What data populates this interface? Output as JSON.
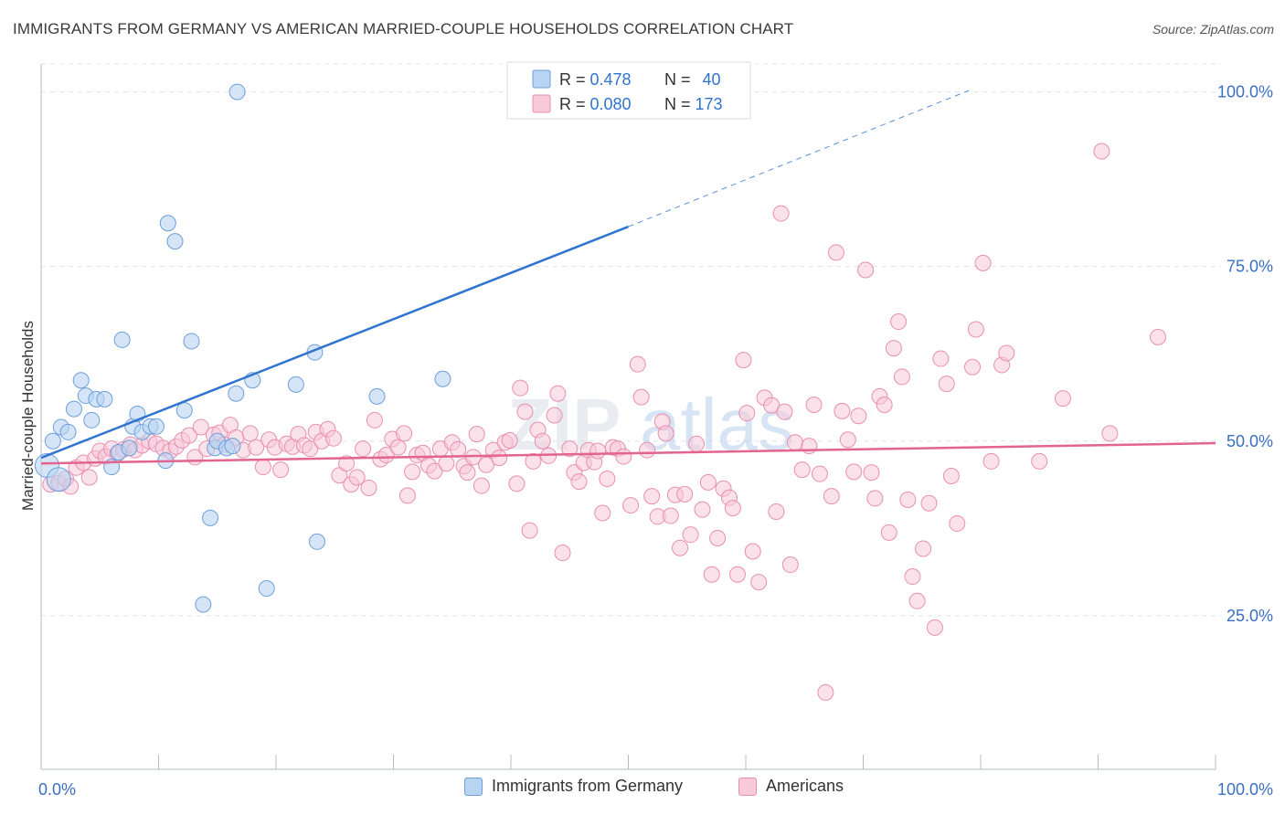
{
  "title": "IMMIGRANTS FROM GERMANY VS AMERICAN MARRIED-COUPLE HOUSEHOLDS CORRELATION CHART",
  "source": "Source: ZipAtlas.com",
  "watermark": {
    "zip": "ZIP",
    "atlas": "atlas"
  },
  "colors": {
    "blue_fill": "#b9d3f2",
    "blue_stroke": "#6d9fdb",
    "blue_line": "#2f74d0",
    "pink_fill": "#f8c9d8",
    "pink_stroke": "#e98fae",
    "pink_line": "#e2648f",
    "grid": "#dfe3ea",
    "axis_text": "#3b6fc2"
  },
  "legend_top": {
    "rows": [
      {
        "r_label": "R = ",
        "r_value": "0.478",
        "n_label": "N = ",
        "n_value": "40",
        "series": "blue"
      },
      {
        "r_label": "R = ",
        "r_value": "0.080",
        "n_label": "N = ",
        "n_value": "173",
        "series": "pink"
      }
    ]
  },
  "legend_bottom": {
    "items": [
      {
        "label": "Immigrants from Germany",
        "series": "blue"
      },
      {
        "label": "Americans",
        "series": "pink"
      }
    ]
  },
  "chart_data": {
    "type": "scatter",
    "title": "IMMIGRANTS FROM GERMANY VS AMERICAN MARRIED-COUPLE HOUSEHOLDS CORRELATION CHART",
    "xlabel": "",
    "ylabel": "Married-couple Households",
    "xlim": [
      0,
      100
    ],
    "ylim": [
      3,
      104
    ],
    "x_tick_labels": [
      "0.0%",
      "100.0%"
    ],
    "y_ticks": [
      25,
      50,
      75,
      100
    ],
    "y_tick_labels": [
      "25.0%",
      "50.0%",
      "75.0%",
      "100.0%"
    ],
    "grid": true,
    "legend_placement": "top-center",
    "series": [
      {
        "name": "Immigrants from Germany",
        "color": "blue",
        "trend": {
          "x0": 0,
          "y0": 47.6,
          "x1": 50,
          "y1": 80.7,
          "dashed_to_x": 79,
          "dashed_to_y": 100.2
        },
        "points": [
          [
            1.0,
            50.0
          ],
          [
            1.7,
            52.0
          ],
          [
            2.3,
            51.3
          ],
          [
            2.8,
            54.6
          ],
          [
            3.4,
            58.7
          ],
          [
            3.8,
            56.5
          ],
          [
            4.3,
            53.0
          ],
          [
            4.7,
            56.0
          ],
          [
            5.4,
            56.0
          ],
          [
            6.0,
            46.3
          ],
          [
            6.6,
            48.4
          ],
          [
            6.9,
            64.5
          ],
          [
            7.5,
            49.0
          ],
          [
            7.8,
            52.1
          ],
          [
            8.2,
            53.9
          ],
          [
            8.6,
            51.3
          ],
          [
            9.3,
            52.1
          ],
          [
            9.8,
            52.1
          ],
          [
            10.6,
            47.2
          ],
          [
            10.8,
            81.2
          ],
          [
            11.4,
            78.6
          ],
          [
            12.2,
            54.4
          ],
          [
            12.8,
            64.3
          ],
          [
            14.4,
            39.0
          ],
          [
            14.8,
            49.0
          ],
          [
            15.0,
            50.0
          ],
          [
            15.8,
            49.0
          ],
          [
            16.3,
            49.3
          ],
          [
            16.6,
            56.8
          ],
          [
            16.7,
            100.0
          ],
          [
            18.0,
            58.7
          ],
          [
            19.2,
            28.9
          ],
          [
            21.7,
            58.1
          ],
          [
            23.3,
            62.7
          ],
          [
            23.5,
            35.6
          ],
          [
            28.6,
            56.4
          ],
          [
            34.2,
            58.9
          ],
          [
            13.8,
            26.6
          ],
          [
            0.5,
            46.5
          ],
          [
            1.5,
            44.5
          ]
        ]
      },
      {
        "name": "Americans",
        "color": "pink",
        "trend": {
          "x0": 0,
          "y0": 46.8,
          "x1": 100,
          "y1": 49.7
        },
        "points": [
          [
            0.8,
            43.8
          ],
          [
            1.5,
            44.0
          ],
          [
            2.1,
            44.6
          ],
          [
            2.5,
            43.5
          ],
          [
            3.0,
            46.2
          ],
          [
            3.6,
            46.9
          ],
          [
            4.1,
            44.8
          ],
          [
            4.6,
            47.5
          ],
          [
            5.0,
            48.6
          ],
          [
            5.5,
            47.8
          ],
          [
            6.0,
            48.9
          ],
          [
            6.5,
            48.2
          ],
          [
            7.0,
            48.8
          ],
          [
            7.6,
            49.5
          ],
          [
            8.0,
            48.7
          ],
          [
            8.6,
            49.4
          ],
          [
            9.2,
            50.0
          ],
          [
            9.8,
            49.6
          ],
          [
            10.4,
            49.0
          ],
          [
            11.0,
            48.6
          ],
          [
            11.5,
            49.2
          ],
          [
            12.0,
            50.1
          ],
          [
            12.6,
            50.8
          ],
          [
            13.1,
            47.7
          ],
          [
            13.6,
            52.0
          ],
          [
            14.1,
            48.9
          ],
          [
            14.7,
            50.9
          ],
          [
            15.2,
            51.2
          ],
          [
            15.6,
            49.5
          ],
          [
            16.1,
            52.3
          ],
          [
            16.6,
            50.5
          ],
          [
            17.2,
            48.7
          ],
          [
            17.8,
            51.1
          ],
          [
            18.3,
            49.1
          ],
          [
            18.9,
            46.3
          ],
          [
            19.4,
            50.2
          ],
          [
            19.9,
            49.1
          ],
          [
            20.4,
            45.9
          ],
          [
            20.9,
            49.6
          ],
          [
            21.4,
            49.2
          ],
          [
            21.9,
            51.0
          ],
          [
            22.4,
            49.4
          ],
          [
            22.9,
            48.9
          ],
          [
            23.4,
            51.3
          ],
          [
            23.9,
            50.0
          ],
          [
            24.4,
            51.7
          ],
          [
            24.9,
            50.4
          ],
          [
            25.4,
            45.1
          ],
          [
            26.0,
            46.8
          ],
          [
            26.4,
            43.8
          ],
          [
            26.9,
            44.8
          ],
          [
            27.4,
            48.9
          ],
          [
            27.9,
            43.3
          ],
          [
            28.4,
            53.0
          ],
          [
            28.9,
            47.4
          ],
          [
            29.4,
            48.0
          ],
          [
            29.9,
            50.3
          ],
          [
            30.4,
            49.1
          ],
          [
            30.9,
            51.1
          ],
          [
            31.2,
            42.2
          ],
          [
            31.6,
            45.6
          ],
          [
            32.0,
            48.0
          ],
          [
            32.5,
            48.3
          ],
          [
            33.0,
            46.5
          ],
          [
            33.5,
            45.7
          ],
          [
            34.0,
            48.9
          ],
          [
            34.5,
            46.8
          ],
          [
            35.0,
            49.8
          ],
          [
            35.5,
            48.8
          ],
          [
            36.0,
            46.4
          ],
          [
            36.3,
            45.5
          ],
          [
            36.8,
            47.7
          ],
          [
            37.1,
            51.0
          ],
          [
            37.5,
            43.6
          ],
          [
            37.9,
            46.6
          ],
          [
            38.5,
            48.7
          ],
          [
            39.0,
            47.6
          ],
          [
            39.5,
            49.8
          ],
          [
            39.9,
            50.1
          ],
          [
            40.5,
            43.9
          ],
          [
            40.8,
            57.6
          ],
          [
            41.2,
            54.2
          ],
          [
            41.6,
            37.2
          ],
          [
            41.9,
            47.1
          ],
          [
            42.3,
            51.6
          ],
          [
            42.7,
            50.0
          ],
          [
            43.2,
            47.9
          ],
          [
            43.7,
            53.7
          ],
          [
            44.0,
            56.8
          ],
          [
            44.4,
            34.0
          ],
          [
            45.0,
            48.9
          ],
          [
            45.4,
            45.5
          ],
          [
            45.8,
            44.2
          ],
          [
            46.2,
            46.9
          ],
          [
            46.6,
            48.7
          ],
          [
            47.1,
            47.0
          ],
          [
            47.4,
            48.6
          ],
          [
            47.8,
            39.7
          ],
          [
            48.2,
            44.6
          ],
          [
            48.7,
            49.1
          ],
          [
            49.1,
            48.9
          ],
          [
            49.6,
            47.8
          ],
          [
            50.2,
            40.8
          ],
          [
            50.8,
            61.0
          ],
          [
            51.1,
            56.3
          ],
          [
            51.6,
            48.7
          ],
          [
            52.0,
            42.1
          ],
          [
            52.5,
            39.2
          ],
          [
            52.9,
            52.8
          ],
          [
            53.2,
            51.1
          ],
          [
            53.6,
            39.3
          ],
          [
            54.0,
            42.3
          ],
          [
            54.4,
            34.7
          ],
          [
            54.8,
            42.4
          ],
          [
            55.3,
            36.6
          ],
          [
            55.8,
            49.6
          ],
          [
            56.3,
            40.2
          ],
          [
            56.8,
            44.1
          ],
          [
            57.1,
            30.9
          ],
          [
            57.6,
            36.1
          ],
          [
            58.1,
            43.2
          ],
          [
            58.6,
            41.9
          ],
          [
            58.9,
            40.4
          ],
          [
            59.3,
            30.9
          ],
          [
            59.8,
            61.6
          ],
          [
            60.1,
            54.0
          ],
          [
            60.6,
            34.2
          ],
          [
            61.1,
            29.8
          ],
          [
            61.6,
            56.2
          ],
          [
            62.2,
            55.1
          ],
          [
            62.6,
            39.9
          ],
          [
            63.0,
            82.6
          ],
          [
            63.3,
            54.2
          ],
          [
            63.8,
            32.3
          ],
          [
            64.2,
            49.8
          ],
          [
            64.8,
            45.9
          ],
          [
            65.4,
            49.3
          ],
          [
            65.8,
            55.2
          ],
          [
            66.3,
            45.3
          ],
          [
            66.8,
            14.0
          ],
          [
            67.3,
            42.1
          ],
          [
            67.7,
            77.0
          ],
          [
            68.2,
            54.3
          ],
          [
            68.7,
            50.2
          ],
          [
            69.2,
            45.6
          ],
          [
            69.6,
            53.6
          ],
          [
            70.2,
            74.5
          ],
          [
            70.7,
            45.5
          ],
          [
            71.0,
            41.8
          ],
          [
            71.4,
            56.4
          ],
          [
            71.8,
            55.2
          ],
          [
            72.2,
            36.9
          ],
          [
            72.6,
            63.3
          ],
          [
            73.0,
            67.1
          ],
          [
            73.3,
            59.2
          ],
          [
            73.8,
            41.6
          ],
          [
            74.2,
            30.6
          ],
          [
            74.6,
            27.1
          ],
          [
            75.1,
            34.6
          ],
          [
            75.6,
            41.1
          ],
          [
            76.1,
            23.3
          ],
          [
            76.6,
            61.8
          ],
          [
            77.1,
            58.2
          ],
          [
            77.5,
            45.0
          ],
          [
            78.0,
            38.2
          ],
          [
            79.3,
            60.6
          ],
          [
            79.6,
            66.0
          ],
          [
            80.2,
            75.5
          ],
          [
            80.9,
            47.1
          ],
          [
            81.8,
            60.9
          ],
          [
            82.2,
            62.6
          ],
          [
            85.0,
            47.1
          ],
          [
            87.0,
            56.1
          ],
          [
            90.3,
            91.5
          ],
          [
            91.0,
            51.1
          ],
          [
            95.1,
            64.9
          ]
        ]
      }
    ]
  }
}
